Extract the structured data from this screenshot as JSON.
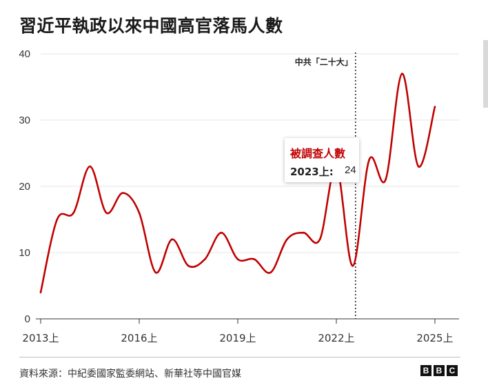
{
  "title": "習近平執政以來中國高官落馬人數",
  "source": "資料來源：中紀委國家監委網站、新華社等中國官媒",
  "logo": [
    "B",
    "B",
    "C"
  ],
  "colors": {
    "line": "#c00000",
    "grid": "#e6e6e6",
    "axis": "#333333"
  },
  "annotation": {
    "label": "中共「二十大」"
  },
  "tooltip": {
    "title": "被調查人數",
    "label": "2023上:",
    "value": "24"
  },
  "chart_data": {
    "type": "line",
    "title": "習近平執政以來中國高官落馬人數",
    "xlabel": "",
    "ylabel": "",
    "ylim": [
      0,
      40
    ],
    "yticks": [
      0,
      10,
      20,
      30,
      40
    ],
    "xticks": [
      "2013上",
      "2016上",
      "2019上",
      "2022上",
      "2025上"
    ],
    "grid": true,
    "series": [
      {
        "x": [
          "2013上",
          "2013下",
          "2014上",
          "2014下",
          "2015上",
          "2015下",
          "2016上",
          "2016下",
          "2017上",
          "2017下",
          "2018上",
          "2018下",
          "2019上",
          "2019下",
          "2020上",
          "2020下",
          "2021上",
          "2021下",
          "2022上",
          "2022下",
          "2023上",
          "2023下",
          "2024上",
          "2024下",
          "2025上"
        ],
        "values": [
          4,
          15,
          16,
          23,
          16,
          19,
          16,
          7,
          12,
          8,
          9,
          13,
          9,
          9,
          7,
          12,
          13,
          12,
          23,
          8,
          24,
          21,
          37,
          23,
          32
        ]
      }
    ]
  }
}
